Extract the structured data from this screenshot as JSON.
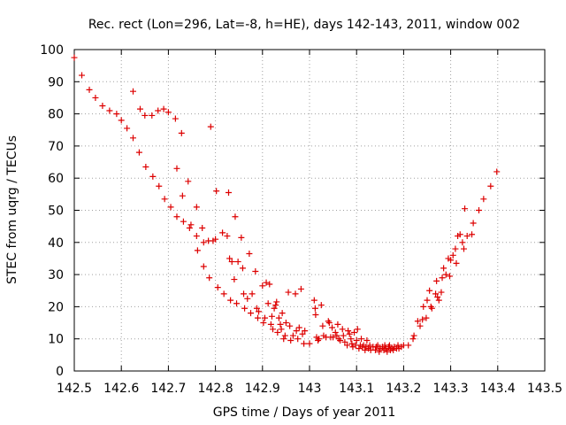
{
  "chart_data": {
    "type": "scatter",
    "title": "Rec. rect (Lon=296, Lat=-8, h=HE), days 142-143, 2011, window 002",
    "xlabel": "GPS time / Days of year 2011",
    "ylabel": "STEC from uqrg / TECUs",
    "xlim": [
      142.5,
      143.5
    ],
    "ylim": [
      0,
      100
    ],
    "xticks": [
      "142.5",
      "142.6",
      "142.7",
      "142.8",
      "142.9",
      "143",
      "143.1",
      "143.2",
      "143.3",
      "143.4",
      "143.5"
    ],
    "yticks": [
      "0",
      "10",
      "20",
      "30",
      "40",
      "50",
      "60",
      "70",
      "80",
      "90",
      "100"
    ],
    "grid": true,
    "marker": "+",
    "color": "#dd0000",
    "points": [
      [
        142.5,
        97.5
      ],
      [
        142.516,
        92
      ],
      [
        142.532,
        87.5
      ],
      [
        142.545,
        85
      ],
      [
        142.56,
        82.5
      ],
      [
        142.575,
        81
      ],
      [
        142.59,
        80
      ],
      [
        142.6,
        78
      ],
      [
        142.612,
        75.5
      ],
      [
        142.625,
        72.5
      ],
      [
        142.625,
        87
      ],
      [
        142.638,
        68
      ],
      [
        142.64,
        81.5
      ],
      [
        142.65,
        79.5
      ],
      [
        142.652,
        63.5
      ],
      [
        142.665,
        79.5
      ],
      [
        142.667,
        60.5
      ],
      [
        142.678,
        81
      ],
      [
        142.68,
        57.5
      ],
      [
        142.69,
        81.5
      ],
      [
        142.692,
        53.5
      ],
      [
        142.7,
        80.5
      ],
      [
        142.705,
        51
      ],
      [
        142.715,
        78.5
      ],
      [
        142.718,
        48
      ],
      [
        142.718,
        63
      ],
      [
        142.728,
        74
      ],
      [
        142.73,
        54.5
      ],
      [
        142.732,
        46.5
      ],
      [
        142.742,
        59
      ],
      [
        142.745,
        44.5
      ],
      [
        142.748,
        45.5
      ],
      [
        142.76,
        51
      ],
      [
        142.76,
        42
      ],
      [
        142.762,
        37.5
      ],
      [
        142.772,
        44.5
      ],
      [
        142.775,
        40
      ],
      [
        142.775,
        32.5
      ],
      [
        142.785,
        40.5
      ],
      [
        142.787,
        29
      ],
      [
        142.79,
        76
      ],
      [
        142.795,
        40.5
      ],
      [
        142.8,
        41
      ],
      [
        142.802,
        56
      ],
      [
        142.805,
        26
      ],
      [
        142.815,
        43
      ],
      [
        142.818,
        24
      ],
      [
        142.825,
        42
      ],
      [
        142.828,
        55.5
      ],
      [
        142.83,
        35
      ],
      [
        142.832,
        22
      ],
      [
        142.835,
        34
      ],
      [
        142.84,
        28.5
      ],
      [
        142.842,
        48
      ],
      [
        142.845,
        21
      ],
      [
        142.848,
        34
      ],
      [
        142.855,
        41.5
      ],
      [
        142.858,
        32
      ],
      [
        142.86,
        24
      ],
      [
        142.862,
        19.5
      ],
      [
        142.868,
        22.5
      ],
      [
        142.872,
        36.5
      ],
      [
        142.875,
        18
      ],
      [
        142.878,
        24
      ],
      [
        142.885,
        31
      ],
      [
        142.888,
        19.5
      ],
      [
        142.89,
        16.5
      ],
      [
        142.892,
        18.5
      ],
      [
        142.9,
        26.5
      ],
      [
        142.902,
        15
      ],
      [
        142.905,
        16.5
      ],
      [
        142.908,
        27.5
      ],
      [
        142.912,
        21
      ],
      [
        142.915,
        27
      ],
      [
        142.918,
        14.5
      ],
      [
        142.92,
        17
      ],
      [
        142.922,
        13
      ],
      [
        142.925,
        19.5
      ],
      [
        142.928,
        20.5
      ],
      [
        142.93,
        21.5
      ],
      [
        142.932,
        12
      ],
      [
        142.935,
        16.5
      ],
      [
        142.938,
        14.5
      ],
      [
        142.94,
        13
      ],
      [
        142.942,
        18
      ],
      [
        142.945,
        10
      ],
      [
        142.948,
        11
      ],
      [
        142.95,
        15
      ],
      [
        142.955,
        24.5
      ],
      [
        142.958,
        14
      ],
      [
        142.96,
        9.5
      ],
      [
        142.965,
        11
      ],
      [
        142.97,
        24
      ],
      [
        142.972,
        12.5
      ],
      [
        142.975,
        10
      ],
      [
        142.978,
        13.5
      ],
      [
        142.982,
        25.5
      ],
      [
        142.985,
        11.5
      ],
      [
        142.988,
        8.5
      ],
      [
        142.99,
        12.5
      ],
      [
        143.0,
        8.5
      ],
      [
        143.01,
        22
      ],
      [
        143.012,
        19.5
      ],
      [
        143.013,
        17.5
      ],
      [
        143.015,
        10.5
      ],
      [
        143.018,
        9.5
      ],
      [
        143.02,
        10
      ],
      [
        143.025,
        20.5
      ],
      [
        143.028,
        14
      ],
      [
        143.03,
        11
      ],
      [
        143.035,
        10.5
      ],
      [
        143.04,
        15.5
      ],
      [
        143.042,
        15
      ],
      [
        143.045,
        10.5
      ],
      [
        143.048,
        13.5
      ],
      [
        143.05,
        10.5
      ],
      [
        143.055,
        12
      ],
      [
        143.058,
        11
      ],
      [
        143.06,
        14.5
      ],
      [
        143.062,
        10
      ],
      [
        143.065,
        9.5
      ],
      [
        143.07,
        13
      ],
      [
        143.072,
        11
      ],
      [
        143.075,
        9
      ],
      [
        143.08,
        8
      ],
      [
        143.082,
        12.5
      ],
      [
        143.085,
        11.5
      ],
      [
        143.088,
        10
      ],
      [
        143.09,
        8.5
      ],
      [
        143.092,
        7.5
      ],
      [
        143.095,
        12
      ],
      [
        143.098,
        8
      ],
      [
        143.1,
        9.5
      ],
      [
        143.102,
        13
      ],
      [
        143.105,
        7
      ],
      [
        143.108,
        8
      ],
      [
        143.11,
        10
      ],
      [
        143.112,
        7.5
      ],
      [
        143.115,
        8
      ],
      [
        143.118,
        6.5
      ],
      [
        143.12,
        7.5
      ],
      [
        143.122,
        9.5
      ],
      [
        143.125,
        7
      ],
      [
        143.128,
        8
      ],
      [
        143.13,
        6.5
      ],
      [
        143.135,
        7.5
      ],
      [
        143.14,
        6.5
      ],
      [
        143.142,
        7.5
      ],
      [
        143.145,
        8
      ],
      [
        143.148,
        6
      ],
      [
        143.15,
        7
      ],
      [
        143.155,
        7.5
      ],
      [
        143.158,
        6.5
      ],
      [
        143.16,
        8
      ],
      [
        143.162,
        7
      ],
      [
        143.165,
        6
      ],
      [
        143.168,
        7.5
      ],
      [
        143.17,
        8
      ],
      [
        143.172,
        6.5
      ],
      [
        143.175,
        7
      ],
      [
        143.178,
        6.5
      ],
      [
        143.18,
        7.5
      ],
      [
        143.185,
        7
      ],
      [
        143.188,
        8
      ],
      [
        143.19,
        7
      ],
      [
        143.195,
        7.5
      ],
      [
        143.2,
        8
      ],
      [
        143.21,
        8
      ],
      [
        143.22,
        10
      ],
      [
        143.222,
        11
      ],
      [
        143.23,
        15.5
      ],
      [
        143.235,
        14
      ],
      [
        143.24,
        16
      ],
      [
        143.242,
        20
      ],
      [
        143.248,
        16.5
      ],
      [
        143.25,
        22
      ],
      [
        143.255,
        25
      ],
      [
        143.258,
        20
      ],
      [
        143.26,
        19.5
      ],
      [
        143.268,
        24
      ],
      [
        143.27,
        28
      ],
      [
        143.272,
        23
      ],
      [
        143.275,
        22
      ],
      [
        143.28,
        24.5
      ],
      [
        143.282,
        29
      ],
      [
        143.285,
        32
      ],
      [
        143.29,
        30
      ],
      [
        143.295,
        35
      ],
      [
        143.298,
        29.5
      ],
      [
        143.3,
        34.5
      ],
      [
        143.305,
        36
      ],
      [
        143.31,
        38
      ],
      [
        143.312,
        33.5
      ],
      [
        143.315,
        42
      ],
      [
        143.32,
        42.5
      ],
      [
        143.325,
        40
      ],
      [
        143.328,
        38
      ],
      [
        143.33,
        50.5
      ],
      [
        143.335,
        42
      ],
      [
        143.345,
        42.5
      ],
      [
        143.348,
        46
      ],
      [
        143.36,
        50
      ],
      [
        143.37,
        53.5
      ],
      [
        143.385,
        57.5
      ],
      [
        143.398,
        62
      ]
    ]
  }
}
